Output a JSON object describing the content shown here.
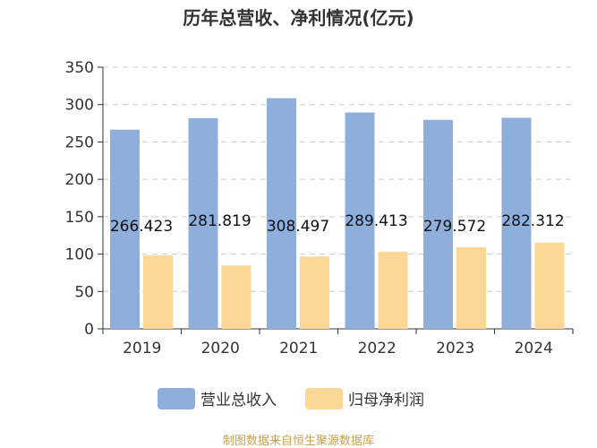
{
  "chart_data": {
    "type": "bar",
    "title": "历年总营收、净利情况(亿元)",
    "categories": [
      "2019",
      "2020",
      "2021",
      "2022",
      "2023",
      "2024"
    ],
    "series": [
      {
        "name": "营业总收入",
        "color": "#8eaedc",
        "values": [
          266.423,
          281.819,
          308.497,
          289.413,
          279.572,
          282.312
        ],
        "labels": [
          "266.423",
          "281.819",
          "308.497",
          "289.413",
          "279.572",
          "282.312"
        ]
      },
      {
        "name": "归母净利润",
        "color": "#fdd796",
        "values": [
          98.1,
          84.9,
          96.6,
          103.2,
          109.2,
          115.2
        ]
      }
    ],
    "ylim": [
      0,
      350
    ],
    "yticks": [
      0,
      50,
      100,
      150,
      200,
      250,
      300,
      350
    ],
    "grid": true,
    "legend_position": "bottom-center",
    "source": "制图数据来自恒生聚源数据库"
  }
}
